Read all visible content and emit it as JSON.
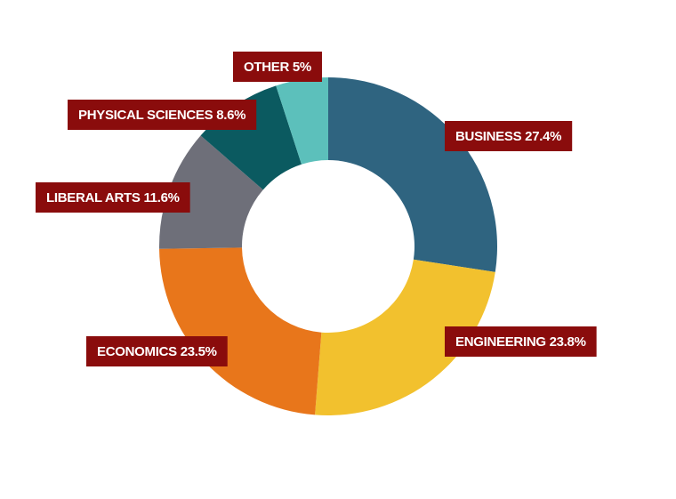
{
  "chart_data": {
    "type": "donut",
    "categories": [
      "BUSINESS",
      "ENGINEERING",
      "ECONOMICS",
      "LIBERAL ARTS",
      "PHYSICAL SCIENCES",
      "OTHER"
    ],
    "values": [
      27.4,
      23.8,
      23.5,
      11.6,
      8.6,
      5
    ],
    "value_labels": [
      "27.4%",
      "23.8%",
      "23.5%",
      "11.6%",
      "8.6%",
      "5%"
    ],
    "colors": [
      "#2f6480",
      "#f2c12e",
      "#e8761b",
      "#6e6f79",
      "#0b5a60",
      "#5cc0bb"
    ],
    "label_color": "#8a0c0c"
  }
}
